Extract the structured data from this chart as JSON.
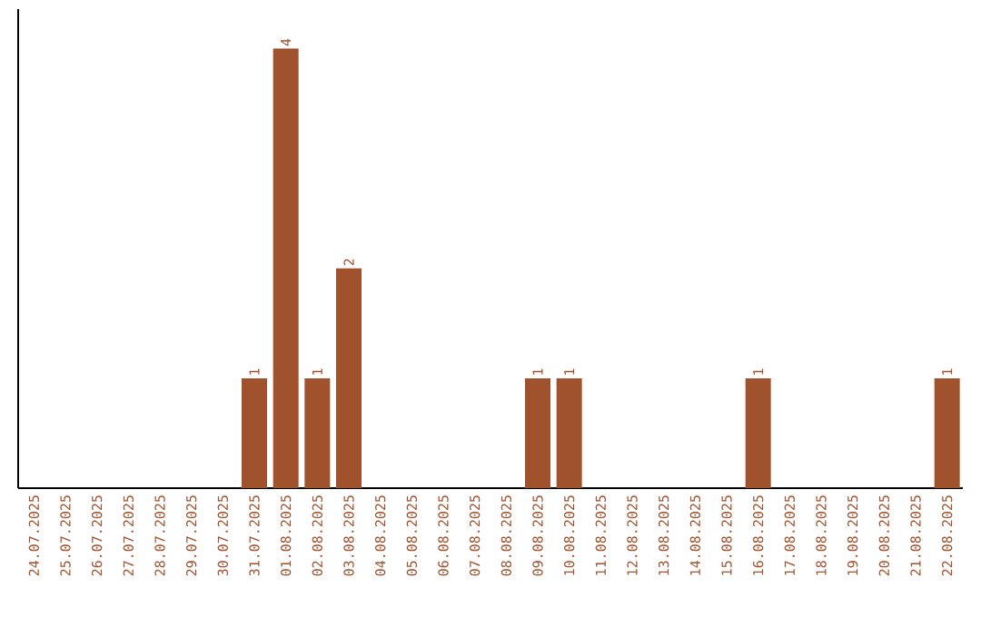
{
  "chart_data": {
    "type": "bar",
    "color": "#a0522d",
    "categories": [
      "24.07.2025",
      "25.07.2025",
      "26.07.2025",
      "27.07.2025",
      "28.07.2025",
      "29.07.2025",
      "30.07.2025",
      "31.07.2025",
      "01.08.2025",
      "02.08.2025",
      "03.08.2025",
      "04.08.2025",
      "05.08.2025",
      "06.08.2025",
      "07.08.2025",
      "08.08.2025",
      "09.08.2025",
      "10.08.2025",
      "11.08.2025",
      "12.08.2025",
      "13.08.2025",
      "14.08.2025",
      "15.08.2025",
      "16.08.2025",
      "17.08.2025",
      "18.08.2025",
      "19.08.2025",
      "20.08.2025",
      "21.08.2025",
      "22.08.2025"
    ],
    "values": [
      0,
      0,
      0,
      0,
      0,
      0,
      0,
      1,
      4,
      1,
      2,
      0,
      0,
      0,
      0,
      0,
      1,
      1,
      0,
      0,
      0,
      0,
      0,
      1,
      0,
      0,
      0,
      0,
      0,
      1
    ],
    "value_labels": [
      null,
      null,
      null,
      null,
      null,
      null,
      null,
      "1",
      "4",
      "1",
      "2",
      null,
      null,
      null,
      null,
      null,
      "1",
      "1",
      null,
      null,
      null,
      null,
      null,
      "1",
      null,
      null,
      null,
      null,
      null,
      "1"
    ],
    "grid": false
  }
}
